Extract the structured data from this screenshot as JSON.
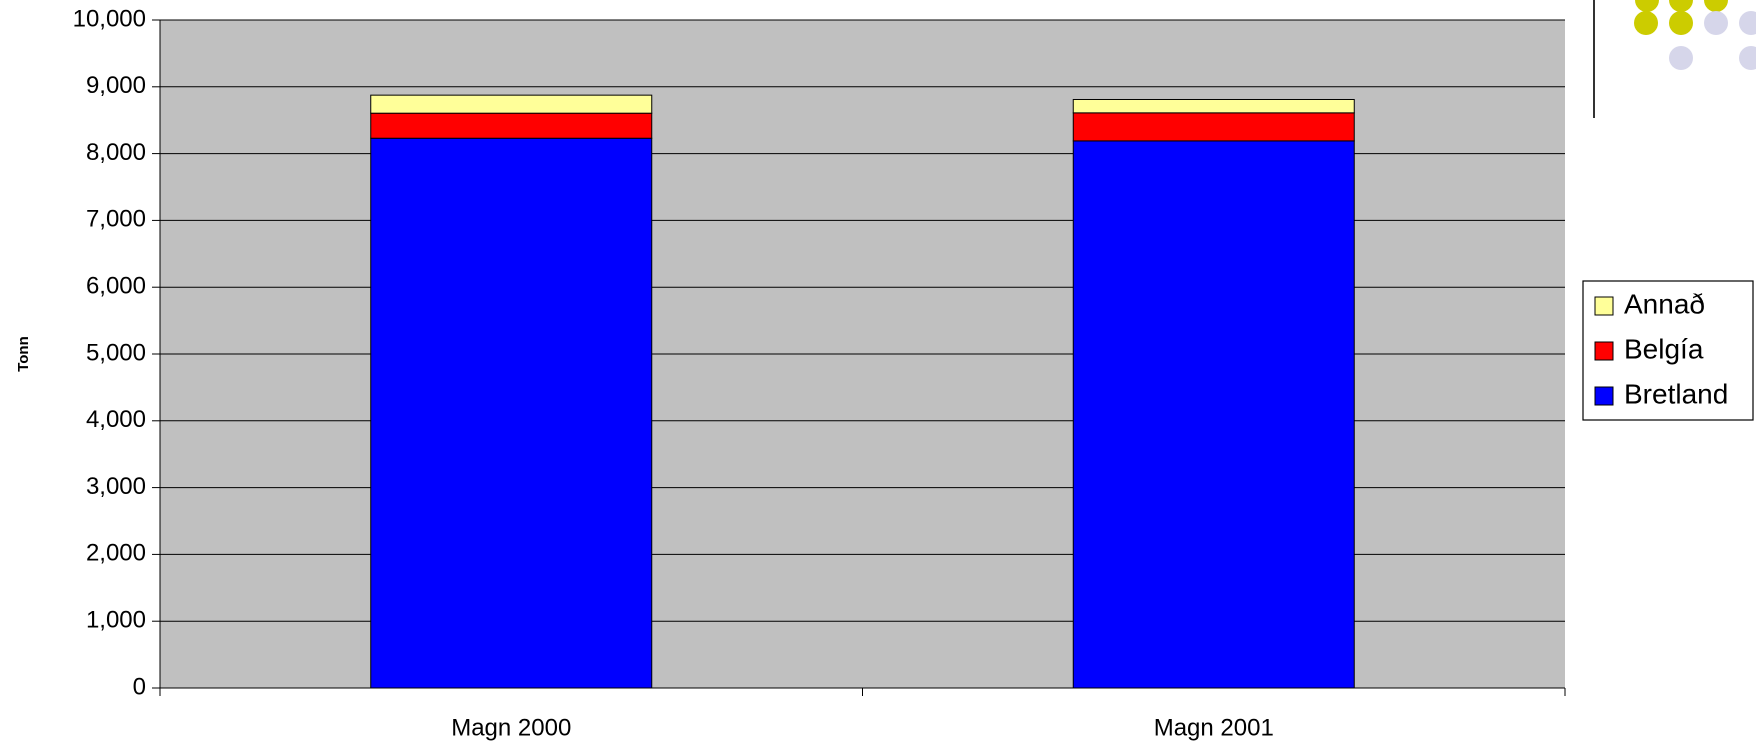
{
  "chart_data": {
    "type": "stacked_bar",
    "y_label": "Tonn",
    "categories": [
      "Magn 2000",
      "Magn 2001"
    ],
    "series": [
      {
        "name": "Bretland",
        "color": "#0000ff",
        "values": [
          8230,
          8190
        ]
      },
      {
        "name": "Belgía",
        "color": "#ff0000",
        "values": [
          375,
          420
        ]
      },
      {
        "name": "Annað",
        "color": "#ffff99",
        "values": [
          270,
          200
        ]
      }
    ],
    "ylim": [
      0,
      10000
    ],
    "yticks": [
      0,
      {
        "value": 1000,
        "label": "1,000"
      },
      {
        "value": 2000,
        "label": "2,000"
      },
      {
        "value": 3000,
        "label": "3,000"
      },
      {
        "value": 4000,
        "label": "4,000"
      },
      {
        "value": 5000,
        "label": "5,000"
      },
      {
        "value": 6000,
        "label": "6,000"
      },
      {
        "value": 7000,
        "label": "7,000"
      },
      {
        "value": 8000,
        "label": "8,000"
      },
      {
        "value": 9000,
        "label": "9,000"
      },
      {
        "value": 10000,
        "label": "10,000"
      }
    ],
    "grid": true,
    "legend": "right"
  }
}
